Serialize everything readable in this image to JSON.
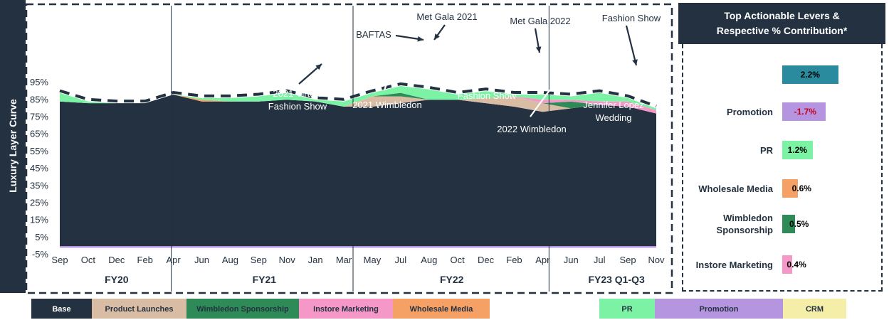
{
  "side_label": "Luxury Layer Curve",
  "right_panel": {
    "title_line1": "Top Actionable Levers &",
    "title_line2": "Respective % Contribution*",
    "levers": [
      {
        "label": "",
        "value": "2.2%",
        "num": 2.2,
        "color": "#2a8a9e"
      },
      {
        "label": "Promotion",
        "value": "-1.7%",
        "num": -1.7,
        "color": "#b695e0",
        "value_color": "#c00020"
      },
      {
        "label": "PR",
        "value": "1.2%",
        "num": 1.2,
        "color": "#7cf2a4"
      },
      {
        "label": "Wholesale Media",
        "value": "0.6%",
        "num": 0.6,
        "color": "#f5a064"
      },
      {
        "label": "Wimbledon Sponsorship",
        "value": "0.5%",
        "num": 0.5,
        "color": "#2e8b57"
      },
      {
        "label": "Instore Marketing",
        "value": "0.4%",
        "num": 0.4,
        "color": "#f598c8"
      }
    ]
  },
  "legend": [
    {
      "label": "Base",
      "color": "#233140",
      "text_color": "#ffffff"
    },
    {
      "label": "Product Launches",
      "color": "#d8bca4",
      "text_color": "#233140"
    },
    {
      "label": "Wimbledon Sponsorship",
      "color": "#2e8b57",
      "text_color": "#233140"
    },
    {
      "label": "Instore Marketing",
      "color": "#f598c8",
      "text_color": "#233140"
    },
    {
      "label": "Wholesale Media",
      "color": "#f5a064",
      "text_color": "#233140"
    },
    {
      "label": "PR",
      "color": "#7cf2a4",
      "text_color": "#233140"
    },
    {
      "label": "Promotion",
      "color": "#b695e0",
      "text_color": "#233140"
    },
    {
      "label": "CRM",
      "color": "#f4eea8",
      "text_color": "#233140"
    }
  ],
  "chart_data": {
    "type": "area",
    "y_tick_labels": [
      "-5%",
      "5%",
      "15%",
      "25%",
      "35%",
      "45%",
      "55%",
      "65%",
      "75%",
      "85%",
      "95%"
    ],
    "ylim": [
      -5,
      100
    ],
    "x_tick_labels": [
      "Sep",
      "Oct",
      "Dec",
      "Feb",
      "Apr",
      "Jun",
      "Aug",
      "Sep",
      "Nov",
      "Jan",
      "Mar",
      "May",
      "Jul",
      "Aug",
      "Oct",
      "Dec",
      "Feb",
      "Apr",
      "Jun",
      "Jul",
      "Sep",
      "Nov"
    ],
    "fiscal_years": [
      "FY20",
      "FY21",
      "FY22",
      "FY23 Q1-Q3"
    ],
    "series": [
      {
        "name": "Base",
        "color": "#233140",
        "values": [
          84,
          83,
          83,
          83,
          88,
          84,
          84,
          84,
          85,
          84,
          81,
          81,
          83,
          85,
          85,
          83,
          81,
          78,
          80,
          82,
          81,
          77
        ]
      },
      {
        "name": "Product Launches",
        "color": "#d8bca4",
        "values": [
          0,
          0,
          0,
          0,
          0,
          0,
          0,
          0,
          0,
          0,
          0,
          6,
          4,
          0,
          0,
          3,
          6,
          5,
          0,
          0,
          0,
          0
        ]
      },
      {
        "name": "Wimbledon Sponsorship",
        "color": "#2e8b57",
        "values": [
          0,
          0,
          0,
          0,
          0,
          0,
          0,
          0,
          0,
          0,
          0,
          0,
          2,
          0,
          0,
          0,
          0,
          0,
          4,
          0,
          0,
          0
        ]
      },
      {
        "name": "Instore Marketing",
        "color": "#f598c8",
        "values": [
          0,
          0,
          0,
          0,
          0,
          0,
          0,
          0,
          0,
          0,
          0,
          0,
          0,
          0,
          0,
          0,
          0,
          2,
          1,
          2,
          3,
          2
        ]
      },
      {
        "name": "Wholesale Media",
        "color": "#f5a064",
        "values": [
          0,
          0,
          0,
          0,
          0,
          1,
          0,
          0,
          0,
          0,
          0,
          0,
          0,
          0,
          0,
          0,
          0,
          0,
          0,
          0,
          0,
          0
        ]
      },
      {
        "name": "PR",
        "color": "#7cf2a4",
        "values": [
          5,
          1,
          0,
          0,
          0,
          1,
          2,
          3,
          4,
          1,
          3,
          2,
          4,
          6,
          3,
          4,
          1,
          3,
          2,
          5,
          2,
          1
        ]
      },
      {
        "name": "Promotion",
        "color": "#b695e0",
        "values": [
          -1,
          -1,
          -1,
          -1,
          -1,
          -1,
          -1,
          -1,
          -1,
          -1,
          -1,
          -1,
          -1,
          -1,
          -1,
          -1,
          -1,
          -1,
          -1,
          -1,
          -1,
          -1
        ]
      },
      {
        "name": "CRM",
        "color": "#f4eea8",
        "values": [
          0,
          0,
          0,
          0,
          0,
          0,
          0,
          0,
          0,
          0,
          0,
          0,
          0,
          0,
          0,
          0,
          0,
          0,
          0,
          0,
          0,
          0
        ]
      }
    ],
    "annotations": [
      {
        "text": "Met Gala 2021",
        "x_index": 13.5
      },
      {
        "text": "BAFTAS",
        "x_index": 12.5
      },
      {
        "text": "Met Gala 2022",
        "x_index": 17.5
      },
      {
        "text": "Fashion Show",
        "x_index": 21.0
      },
      {
        "text": "2021 Virtual Fashion Show",
        "x_index": 9.6
      },
      {
        "text": "2021 Wimbledon",
        "x_index": 12.3
      },
      {
        "text": "Fashion Show",
        "x_index": 16.7
      },
      {
        "text": "2022 Wimbledon",
        "x_index": 18.5
      },
      {
        "text": "Jennifer Lopez Wedding",
        "x_index": 20.3
      }
    ]
  }
}
